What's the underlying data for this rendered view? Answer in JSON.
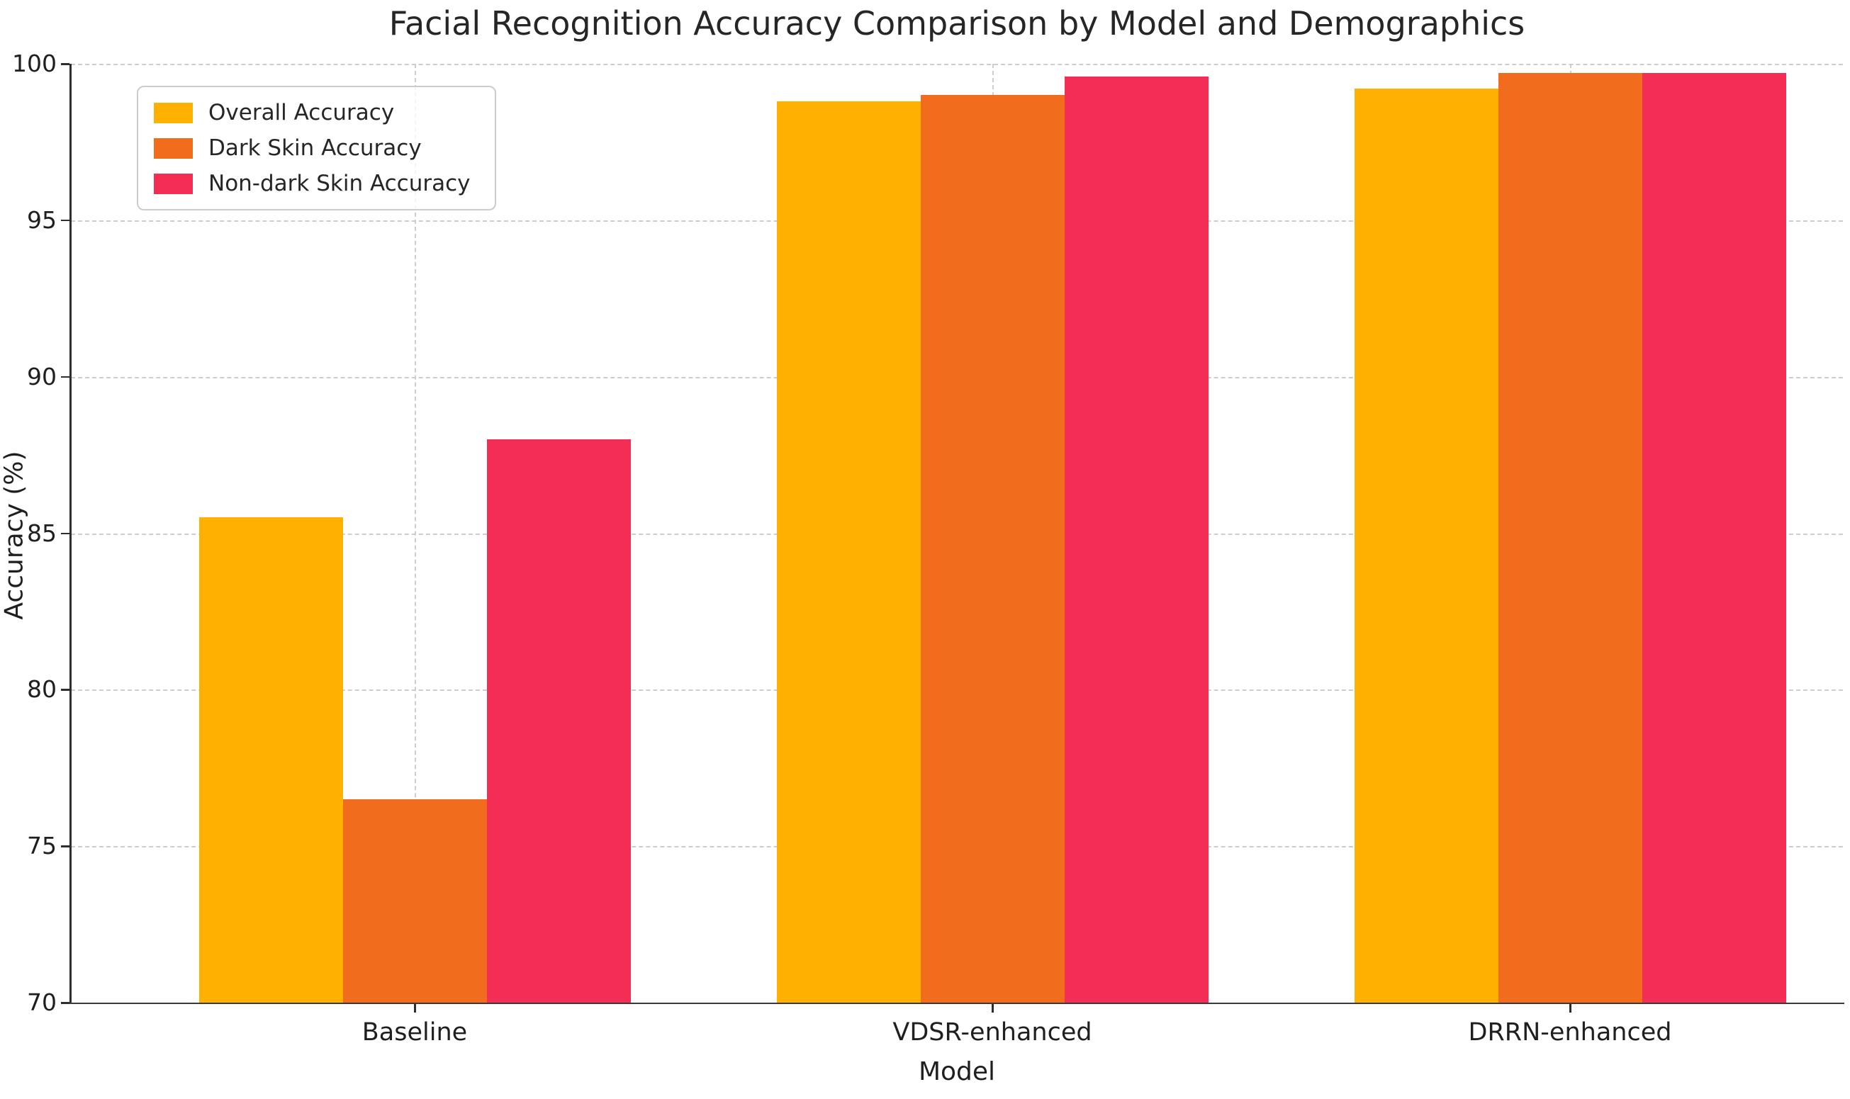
{
  "chart_data": {
    "type": "bar",
    "title": "Facial Recognition Accuracy Comparison by Model and Demographics",
    "xlabel": "Model",
    "ylabel": "Accuracy (%)",
    "categories": [
      "Baseline",
      "VDSR-enhanced",
      "DRRN-enhanced"
    ],
    "series": [
      {
        "name": "Overall Accuracy",
        "color": "#FFB000",
        "values": [
          85.5,
          98.8,
          99.2
        ]
      },
      {
        "name": "Dark Skin Accuracy",
        "color": "#F26C1E",
        "values": [
          76.5,
          99.0,
          99.7
        ]
      },
      {
        "name": "Non-dark Skin Accuracy",
        "color": "#F42D55",
        "values": [
          88.0,
          99.6,
          99.7
        ]
      }
    ],
    "ylim": [
      70,
      100
    ],
    "yticks": [
      70,
      75,
      80,
      85,
      90,
      95,
      100
    ],
    "grid": {
      "horizontal": true,
      "vertical": true,
      "line_style": "dashed",
      "color": "#cdcdcd"
    },
    "legend": {
      "position": "upper-left"
    },
    "colors": {
      "background": "#ffffff",
      "spine": "#2e2e2e",
      "text": "#262626"
    }
  }
}
